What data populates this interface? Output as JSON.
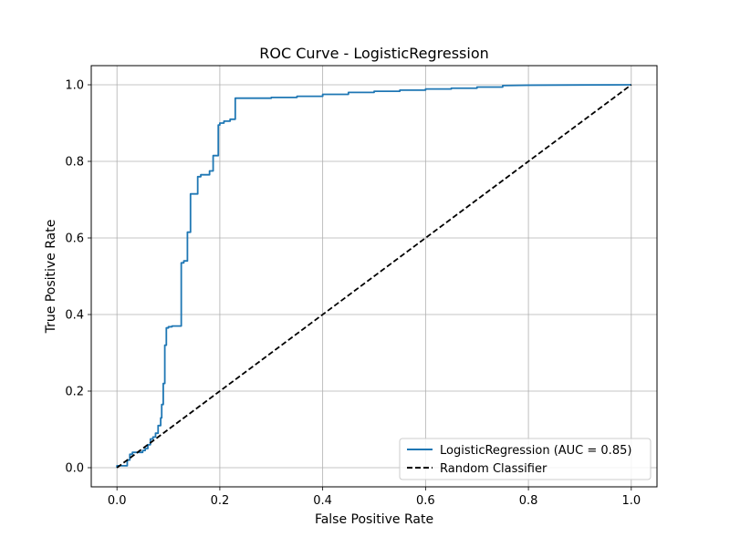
{
  "chart_data": {
    "type": "line",
    "title": "ROC Curve - LogisticRegression",
    "xlabel": "False Positive Rate",
    "ylabel": "True Positive Rate",
    "xlim": [
      -0.05,
      1.05
    ],
    "ylim": [
      -0.05,
      1.05
    ],
    "x_ticks": [
      0.0,
      0.2,
      0.4,
      0.6,
      0.8,
      1.0
    ],
    "y_ticks": [
      0.0,
      0.2,
      0.4,
      0.6,
      0.8,
      1.0
    ],
    "x_tick_labels": [
      "0.0",
      "0.2",
      "0.4",
      "0.6",
      "0.8",
      "1.0"
    ],
    "y_tick_labels": [
      "0.0",
      "0.2",
      "0.4",
      "0.6",
      "0.8",
      "1.0"
    ],
    "grid": true,
    "legend_position": "lower-right",
    "series": [
      {
        "name": "LogisticRegression (AUC = 0.85)",
        "color": "#1f77b4",
        "style": "solid",
        "x": [
          0.0,
          0.0,
          0.02,
          0.02,
          0.025,
          0.025,
          0.03,
          0.03,
          0.05,
          0.05,
          0.055,
          0.055,
          0.06,
          0.06,
          0.065,
          0.065,
          0.07,
          0.07,
          0.075,
          0.075,
          0.08,
          0.08,
          0.085,
          0.085,
          0.087,
          0.087,
          0.09,
          0.09,
          0.093,
          0.093,
          0.096,
          0.096,
          0.1,
          0.1,
          0.107,
          0.107,
          0.112,
          0.112,
          0.125,
          0.125,
          0.13,
          0.13,
          0.137,
          0.137,
          0.143,
          0.143,
          0.147,
          0.147,
          0.157,
          0.157,
          0.163,
          0.163,
          0.18,
          0.18,
          0.187,
          0.187,
          0.197,
          0.197,
          0.2,
          0.2,
          0.208,
          0.208,
          0.22,
          0.22,
          0.23,
          0.23,
          0.3,
          0.3,
          0.35,
          0.35,
          0.4,
          0.4,
          0.45,
          0.45,
          0.5,
          0.5,
          0.55,
          0.55,
          0.6,
          0.6,
          0.65,
          0.65,
          0.7,
          0.7,
          0.75,
          0.75,
          0.8,
          1.0
        ],
        "y": [
          0.0,
          0.005,
          0.005,
          0.02,
          0.02,
          0.035,
          0.035,
          0.04,
          0.04,
          0.045,
          0.045,
          0.05,
          0.05,
          0.06,
          0.06,
          0.075,
          0.075,
          0.08,
          0.08,
          0.09,
          0.09,
          0.11,
          0.11,
          0.13,
          0.13,
          0.165,
          0.165,
          0.22,
          0.22,
          0.32,
          0.32,
          0.365,
          0.365,
          0.368,
          0.368,
          0.37,
          0.37,
          0.37,
          0.37,
          0.535,
          0.535,
          0.54,
          0.54,
          0.615,
          0.615,
          0.715,
          0.715,
          0.715,
          0.715,
          0.76,
          0.76,
          0.765,
          0.765,
          0.775,
          0.775,
          0.815,
          0.815,
          0.895,
          0.895,
          0.9,
          0.9,
          0.905,
          0.905,
          0.91,
          0.91,
          0.965,
          0.965,
          0.967,
          0.967,
          0.97,
          0.97,
          0.975,
          0.975,
          0.98,
          0.98,
          0.983,
          0.983,
          0.986,
          0.986,
          0.989,
          0.989,
          0.991,
          0.991,
          0.994,
          0.994,
          0.998,
          0.999,
          1.0
        ]
      },
      {
        "name": "Random Classifier",
        "color": "#000000",
        "style": "dashed",
        "x": [
          0.0,
          1.0
        ],
        "y": [
          0.0,
          1.0
        ]
      }
    ]
  }
}
